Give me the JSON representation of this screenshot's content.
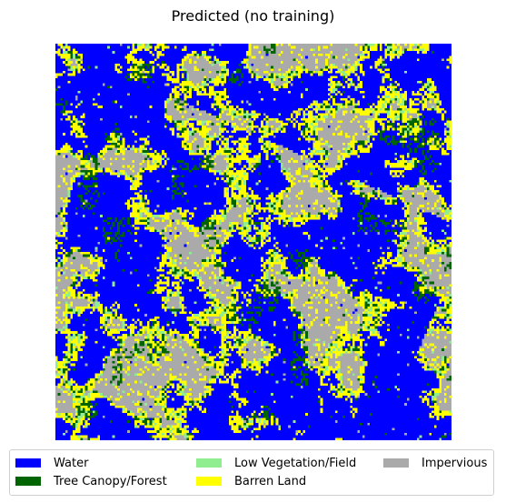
{
  "chart_data": {
    "type": "heatmap",
    "title": "Predicted (no training)",
    "xlabel": "",
    "ylabel": "",
    "grid": false,
    "axes_visible": false,
    "legend_placement": "bottom-center",
    "legend_columns": 3,
    "classes": [
      {
        "id": 0,
        "label": "Water",
        "color": "#0000ff"
      },
      {
        "id": 1,
        "label": "Tree Canopy/Forest",
        "color": "#006400"
      },
      {
        "id": 2,
        "label": "Low Vegetation/Field",
        "color": "#90ee90"
      },
      {
        "id": 3,
        "label": "Barren Land",
        "color": "#ffff00"
      },
      {
        "id": 4,
        "label": "Impervious",
        "color": "#aaaaaa"
      }
    ],
    "grid_size": [
      160,
      160
    ],
    "approx_class_fractions": {
      "Water": 0.42,
      "Tree Canopy/Forest": 0.07,
      "Low Vegetation/Field": 0.07,
      "Barren Land": 0.17,
      "Impervious": 0.27
    }
  }
}
